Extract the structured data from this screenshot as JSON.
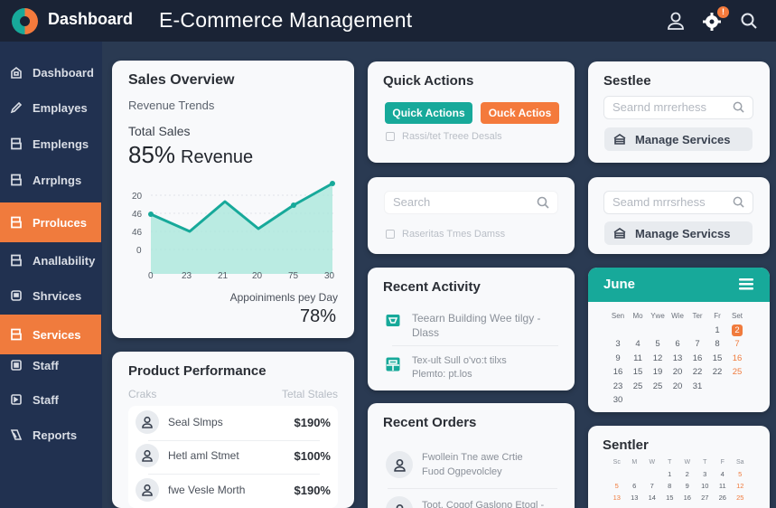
{
  "header": {
    "logo_label": "Dashboard",
    "app_title": "E-Commerce Management",
    "notification_badge": "!",
    "icons": [
      "user-icon",
      "gear-icon",
      "search-icon"
    ]
  },
  "sidebar": {
    "items": [
      {
        "label": "Dashboard",
        "icon": "home-icon",
        "active": false
      },
      {
        "label": "Emplayes",
        "icon": "pencil-icon",
        "active": false
      },
      {
        "label": "Emplengs",
        "icon": "b-icon",
        "active": false
      },
      {
        "label": "Arrplngs",
        "icon": "b-icon",
        "active": false
      },
      {
        "label": "Prroluces",
        "icon": "b-icon",
        "active": true
      },
      {
        "label": "Anallability",
        "icon": "b-icon",
        "active": false
      },
      {
        "label": "Shrvices",
        "icon": "shield-icon",
        "active": false
      },
      {
        "label": "Services",
        "icon": "b-icon",
        "active": true
      },
      {
        "label": "Staff",
        "icon": "square-icon",
        "active": false
      },
      {
        "label": "Staff",
        "icon": "square-icon",
        "active": false
      },
      {
        "label": "Reports",
        "icon": "report-icon",
        "active": false
      }
    ]
  },
  "sales_overview": {
    "title": "Sales Overview",
    "subtitle": "Revenue Trends",
    "total_label": "Total Sales",
    "total_value": "85%",
    "total_suffix": "Revenue",
    "appointments_label": "Appoinimenls pey Day",
    "appointments_value": "78%"
  },
  "chart_data": {
    "type": "area",
    "title": "Revenue Trends",
    "x": [
      "0",
      "23",
      "21",
      "20",
      "75",
      "30"
    ],
    "y_tick_labels": [
      "20",
      "46",
      "46",
      "0"
    ],
    "series": [
      {
        "name": "Revenue",
        "values": [
          58,
          42,
          70,
          44,
          62,
          90
        ],
        "color": "#17a99a"
      }
    ],
    "ylim": [
      0,
      100
    ],
    "grid": true,
    "xlabel": "",
    "ylabel": ""
  },
  "product_performance": {
    "title": "Product Performance",
    "col_left": "Craks",
    "col_right": "Tetal Stales",
    "rows": [
      {
        "name": "Seal Slmps",
        "value": "$190%"
      },
      {
        "name": "Hetl aml Stmet",
        "value": "$100%"
      },
      {
        "name": "fwe Vesle Morth",
        "value": "$190%"
      }
    ]
  },
  "quick_actions": {
    "title": "Quick Actions",
    "primary_button": "Quick Actions",
    "secondary_button": "Ouck Actios",
    "hint": "Rassi/tet Treee Desals",
    "colors": {
      "primary": "#17a99a",
      "secondary": "#f47a3c"
    }
  },
  "search_card": {
    "placeholder": "Search",
    "hint": "Raseritas Tmes Damss"
  },
  "recent_activity": {
    "title": "Recent Activity",
    "items": [
      {
        "line1": "Teearn Building Wee tilgy -",
        "line2": "Dlass"
      },
      {
        "line1": "Tex-ult Sull o'vo:t tilxs",
        "line2": "Plemto: pt.los"
      }
    ]
  },
  "recent_orders": {
    "title": "Recent Orders",
    "items": [
      {
        "line1": "Fwollein Tne awe Crtie",
        "line2": "Fuod Ogpevolcley"
      },
      {
        "line1": "Toot. Cogof Gaslono Etoql -",
        "line2": ""
      }
    ]
  },
  "services_card_1": {
    "title": "Sestlee",
    "search_placeholder": "Searnd mrrerhess",
    "manage_label": "Manage Services"
  },
  "services_card_2": {
    "search_placeholder": "Seamd mrrsrhess",
    "manage_label": "Manage Servicss"
  },
  "calendar": {
    "month": "June",
    "weekdays": [
      "Sen",
      "Mo",
      "Ywe",
      "Wie",
      "Ter",
      "Fr",
      "Set"
    ],
    "weeks": [
      [
        "",
        "",
        "",
        "",
        "",
        "1",
        "2"
      ],
      [
        "3",
        "4",
        "5",
        "6",
        "7",
        "8",
        "7"
      ],
      [
        "9",
        "11",
        "12",
        "13",
        "16",
        "15",
        "16"
      ],
      [
        "16",
        "15",
        "19",
        "20",
        "22",
        "22",
        "25"
      ],
      [
        "23",
        "25",
        "25",
        "20",
        "31",
        "",
        ""
      ],
      [
        "30",
        "",
        "",
        "",
        "",
        "",
        ""
      ]
    ],
    "selected": "2"
  },
  "mini_calendar": {
    "title": "Sentler",
    "weekdays": [
      "Sc",
      "M",
      "W",
      "T",
      "W",
      "T",
      "F",
      "Sa"
    ],
    "weeks": [
      [
        "",
        "",
        "",
        "1",
        "2",
        "3",
        "4",
        "5"
      ],
      [
        "5",
        "6",
        "7",
        "8",
        "9",
        "10",
        "11",
        "12"
      ],
      [
        "13",
        "13",
        "14",
        "15",
        "16",
        "27",
        "26",
        "25"
      ]
    ]
  }
}
